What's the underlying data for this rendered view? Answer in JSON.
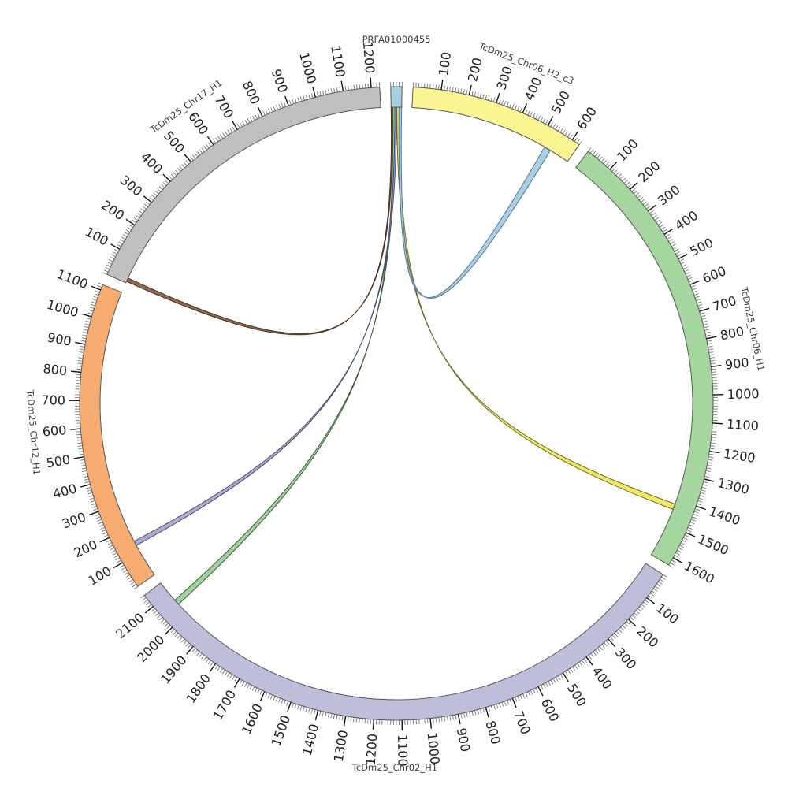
{
  "figure_title": "",
  "chart_data": {
    "type": "circos",
    "description": "Circular synteny (Circos-style) plot: contig PRFA01000455 linked by alignment ribbons to five chromosome segments",
    "gap_degrees": 2,
    "ring": {
      "band_outline_color": "#555555",
      "minor_tick_interval": 10,
      "major_tick_interval": 100,
      "minor_tick_color": "#777777",
      "major_tick_color": "#111111"
    },
    "segments": [
      {
        "id": "PRFA01000455",
        "label": "PRFA01000455",
        "length": 40,
        "color": "#a8cee2",
        "label_at": 20,
        "major_ticks": []
      },
      {
        "id": "TcDm25_Chr06_H2_c3",
        "label": "TcDm25_Chr06_H2_c3",
        "length": 630,
        "color": "#fbf493",
        "label_at": 350,
        "major_ticks": [
          100,
          200,
          300,
          400,
          500,
          600
        ]
      },
      {
        "id": "TcDm25_Chr06_H1",
        "label": "TcDm25_Chr06_H1",
        "length": 1630,
        "color": "#a5d6a0",
        "label_at": 800,
        "major_ticks": [
          100,
          200,
          300,
          400,
          500,
          600,
          700,
          800,
          900,
          1000,
          1100,
          1200,
          1300,
          1400,
          1500,
          1600
        ]
      },
      {
        "id": "TcDm25_Chr02_H1",
        "label": "TcDm25_Chr02_H1",
        "length": 2150,
        "color": "#bebdda",
        "label_at": 1125,
        "major_ticks": [
          100,
          200,
          300,
          400,
          500,
          600,
          700,
          800,
          900,
          1000,
          1100,
          1200,
          1300,
          1400,
          1500,
          1600,
          1700,
          1800,
          1900,
          2000,
          2100
        ]
      },
      {
        "id": "TcDm25_Chr12_H1",
        "label": "TcDm25_Chr12_H1",
        "length": 1120,
        "color": "#f6ac71",
        "label_at": 600,
        "major_ticks": [
          100,
          200,
          300,
          400,
          500,
          600,
          700,
          800,
          900,
          1000,
          1100
        ]
      },
      {
        "id": "TcDm25_Chr17_H1",
        "label": "TcDm25_Chr17_H1",
        "length": 1230,
        "color": "#bfbfbf",
        "label_at": 600,
        "major_ticks": [
          100,
          200,
          300,
          400,
          500,
          600,
          700,
          800,
          900,
          1000,
          1100,
          1200
        ]
      }
    ],
    "links": [
      {
        "source": "PRFA01000455",
        "source_span": [
          0,
          5
        ],
        "target": "TcDm25_Chr17_H1",
        "target_span": [
          6,
          20
        ],
        "fill": "#8a6242",
        "stroke": "#4a2f1d"
      },
      {
        "source": "PRFA01000455",
        "source_span": [
          7,
          14
        ],
        "target": "TcDm25_Chr02_H1",
        "target_span": [
          2045,
          2066
        ],
        "fill": "#9cd097",
        "stroke": "#3a5c38"
      },
      {
        "source": "PRFA01000455",
        "source_span": [
          14,
          21
        ],
        "target": "TcDm25_Chr12_H1",
        "target_span": [
          130,
          148
        ],
        "fill": "#a9a8ce",
        "stroke": "#4a4a72"
      },
      {
        "source": "PRFA01000455",
        "source_span": [
          22,
          32
        ],
        "target": "TcDm25_Chr06_H1",
        "target_span": [
          1418,
          1440
        ],
        "fill": "#efe85e",
        "stroke": "#6e6824"
      },
      {
        "source": "PRFA01000455",
        "source_span": [
          30,
          40
        ],
        "target": "TcDm25_Chr06_H2_c3",
        "target_span": [
          528,
          553
        ],
        "fill": "#a6cbe3",
        "stroke": "#4c7a99"
      }
    ]
  }
}
